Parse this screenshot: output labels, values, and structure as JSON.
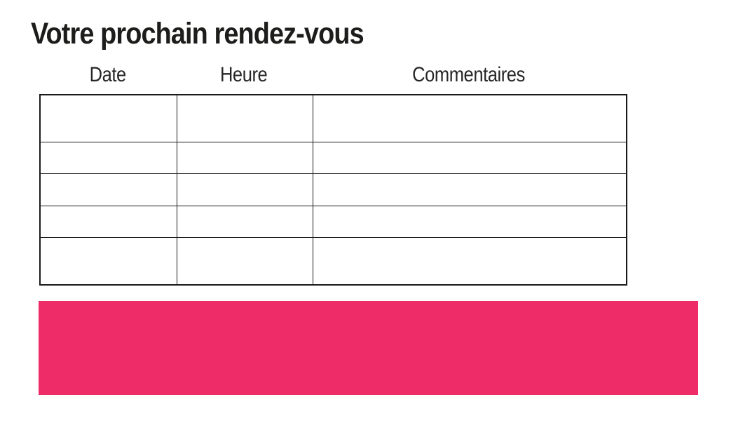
{
  "page": {
    "title": "Votre prochain rendez-vous"
  },
  "table": {
    "columns": [
      {
        "key": "date",
        "label": "Date"
      },
      {
        "key": "heure",
        "label": "Heure"
      },
      {
        "key": "commentaires",
        "label": "Commentaires"
      }
    ],
    "rows": [
      {
        "date": "",
        "heure": "",
        "commentaires": ""
      },
      {
        "date": "",
        "heure": "",
        "commentaires": ""
      },
      {
        "date": "",
        "heure": "",
        "commentaires": ""
      },
      {
        "date": "",
        "heure": "",
        "commentaires": ""
      },
      {
        "date": "",
        "heure": "",
        "commentaires": ""
      }
    ]
  },
  "banner": {
    "text": ""
  },
  "colors": {
    "accent_pink": "#EE2C68",
    "title_text": "#1D1D1B",
    "header_text": "#262626",
    "table_border": "#1A1A1A",
    "background": "#FFFFFF"
  }
}
